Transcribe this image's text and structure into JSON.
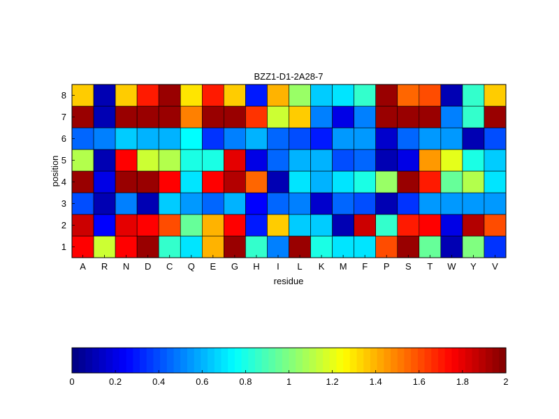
{
  "chart_data": {
    "type": "heatmap",
    "title": "BZZ1-D1-2A28-7",
    "xlabel": "residue",
    "ylabel": "position",
    "x_categories": [
      "A",
      "R",
      "N",
      "D",
      "C",
      "Q",
      "E",
      "G",
      "H",
      "I",
      "L",
      "K",
      "M",
      "F",
      "P",
      "S",
      "T",
      "W",
      "Y",
      "V"
    ],
    "y_categories": [
      "1",
      "2",
      "3",
      "4",
      "5",
      "6",
      "7",
      "8"
    ],
    "values": [
      [
        1.75,
        1.15,
        1.75,
        1.95,
        0.85,
        0.7,
        1.4,
        1.95,
        0.85,
        0.5,
        1.95,
        0.8,
        0.7,
        0.7,
        1.6,
        1.95,
        0.95,
        0.1,
        1.0,
        0.35
      ],
      [
        1.85,
        0.25,
        1.8,
        1.75,
        1.6,
        0.95,
        1.4,
        1.75,
        0.3,
        1.35,
        0.65,
        0.65,
        0.1,
        1.85,
        0.85,
        1.7,
        1.75,
        0.2,
        1.9,
        1.6
      ],
      [
        0.4,
        0.1,
        0.5,
        0.1,
        0.65,
        0.55,
        0.45,
        0.6,
        0.25,
        0.45,
        0.5,
        0.15,
        0.45,
        0.4,
        0.1,
        0.35,
        0.55,
        0.55,
        0.55,
        0.55
      ],
      [
        1.95,
        0.2,
        1.95,
        1.95,
        1.75,
        0.7,
        1.75,
        1.9,
        1.55,
        0.1,
        0.7,
        0.6,
        0.7,
        0.8,
        1.05,
        1.95,
        1.7,
        0.95,
        1.1,
        0.7
      ],
      [
        1.1,
        0.1,
        1.75,
        1.15,
        1.1,
        0.8,
        0.8,
        1.8,
        0.2,
        0.45,
        0.6,
        0.6,
        0.4,
        0.45,
        0.1,
        0.2,
        1.45,
        1.2,
        0.8,
        0.65
      ],
      [
        0.45,
        0.5,
        0.65,
        0.6,
        0.6,
        0.75,
        0.35,
        0.5,
        0.6,
        0.45,
        0.4,
        0.3,
        0.55,
        0.55,
        0.15,
        0.45,
        0.55,
        0.55,
        0.1,
        0.4
      ],
      [
        1.95,
        0.1,
        1.95,
        1.95,
        1.95,
        1.5,
        1.95,
        1.95,
        1.65,
        1.15,
        1.35,
        0.5,
        0.2,
        0.5,
        1.95,
        1.95,
        1.95,
        0.5,
        0.85,
        1.95
      ],
      [
        1.35,
        0.1,
        1.35,
        1.7,
        1.95,
        1.3,
        1.7,
        1.35,
        0.3,
        1.4,
        1.05,
        0.65,
        0.7,
        0.85,
        1.95,
        1.55,
        1.6,
        0.1,
        0.85,
        1.35
      ]
    ],
    "colorbar": {
      "min": 0,
      "max": 2,
      "ticks": [
        0,
        0.2,
        0.4,
        0.6,
        0.8,
        1,
        1.2,
        1.4,
        1.6,
        1.8,
        2
      ],
      "tick_labels": [
        "0",
        "0.2",
        "0.4",
        "0.6",
        "0.8",
        "1",
        "1.2",
        "1.4",
        "1.6",
        "1.8",
        "2"
      ],
      "colormap": "jet"
    }
  }
}
